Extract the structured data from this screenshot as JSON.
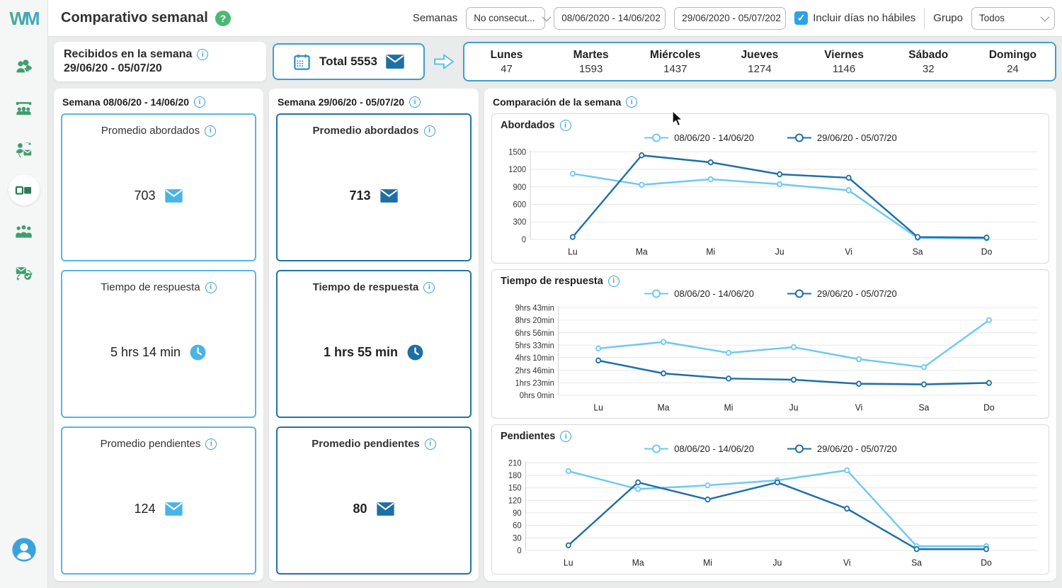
{
  "app": {
    "logo_text": "WM"
  },
  "sidebar": {
    "items": [
      {
        "icon": "users-tag-icon"
      },
      {
        "icon": "presentation-audience-icon"
      },
      {
        "icon": "person-mail-exchange-icon"
      },
      {
        "icon": "compare-squares-icon",
        "active": true
      },
      {
        "icon": "people-group-icon"
      },
      {
        "icon": "mail-check-sync-icon"
      }
    ],
    "profile_icon": "user-profile-icon"
  },
  "header": {
    "title": "Comparativo semanal",
    "semanas_label": "Semanas",
    "weeks_select_value": "No consecut...",
    "week1_input_value": "08/06/2020 - 14/06/202",
    "week2_input_value": "29/06/2020 - 05/07/202",
    "include_days_label": "Incluir días no hábiles",
    "include_days_checked": true,
    "grupo_label": "Grupo",
    "grupo_select_value": "Todos"
  },
  "received": {
    "title": "Recibidos en la semana",
    "date_range": "29/06/20 - 05/07/20",
    "total_label": "Total",
    "total_value": "5553",
    "days": [
      {
        "label": "Lunes",
        "value": "47"
      },
      {
        "label": "Martes",
        "value": "1593"
      },
      {
        "label": "Miércoles",
        "value": "1437"
      },
      {
        "label": "Jueves",
        "value": "1274"
      },
      {
        "label": "Viernes",
        "value": "1146"
      },
      {
        "label": "Sábado",
        "value": "32"
      },
      {
        "label": "Domingo",
        "value": "24"
      }
    ]
  },
  "week1": {
    "header": "Semana 08/06/20 - 14/06/20",
    "cards": [
      {
        "title": "Promedio abordados",
        "value": "703",
        "icon": "mail-icon"
      },
      {
        "title": "Tiempo de respuesta",
        "value": "5 hrs 14 min",
        "icon": "clock-icon"
      },
      {
        "title": "Promedio pendientes",
        "value": "124",
        "icon": "mail-icon"
      }
    ]
  },
  "week2": {
    "header": "Semana 29/06/20 - 05/07/20",
    "cards": [
      {
        "title": "Promedio abordados",
        "value": "713",
        "icon": "mail-icon"
      },
      {
        "title": "Tiempo de respuesta",
        "value": "1 hrs 55 min",
        "icon": "clock-icon"
      },
      {
        "title": "Promedio pendientes",
        "value": "80",
        "icon": "mail-icon"
      }
    ]
  },
  "comparison": {
    "header": "Comparación de la semana"
  },
  "colors": {
    "series_light": "#6ec9f0",
    "series_dark": "#1d6fa5",
    "accent_border_blue": "#3d9ed3",
    "info_blue": "#3aa0d8",
    "help_green": "#4cb873",
    "sidebar_green": "#3f9e6e",
    "checkbox_blue": "#2ba3e8"
  },
  "chart_data": [
    {
      "type": "line",
      "title": "Abordados",
      "categories": [
        "Lu",
        "Ma",
        "Mi",
        "Ju",
        "Vi",
        "Sa",
        "Do"
      ],
      "ylim": [
        0,
        1500
      ],
      "yticks": [
        0,
        300,
        600,
        900,
        1200,
        1500
      ],
      "ytick_labels": [
        "0",
        "300",
        "600",
        "900",
        "1200",
        "1500"
      ],
      "grid": true,
      "legend_position": "top",
      "series": [
        {
          "name": "08/06/20 - 14/06/20",
          "color": "#6ec9f0",
          "values": [
            1125,
            935,
            1030,
            945,
            840,
            25,
            15
          ]
        },
        {
          "name": "29/06/20 - 05/07/20",
          "color": "#1d6fa5",
          "values": [
            40,
            1440,
            1320,
            1115,
            1055,
            40,
            30
          ]
        }
      ]
    },
    {
      "type": "line",
      "title": "Tiempo de respuesta",
      "categories": [
        "Lu",
        "Ma",
        "Mi",
        "Ju",
        "Vi",
        "Sa",
        "Do"
      ],
      "ylim": [
        0,
        583
      ],
      "yticks": [
        0,
        83,
        166,
        250,
        333,
        416,
        500,
        583
      ],
      "ytick_labels": [
        "0hrs 0min",
        "1hrs 23min",
        "2hrs 46min",
        "4hrs 10min",
        "5hrs 33min",
        "6hrs 56min",
        "8hrs 20min",
        "9hrs 43min"
      ],
      "grid": true,
      "legend_position": "top",
      "y_unit": "minutes",
      "series": [
        {
          "name": "08/06/20 - 14/06/20",
          "color": "#6ec9f0",
          "values": [
            311,
            355,
            282,
            320,
            240,
            187,
            500
          ]
        },
        {
          "name": "29/06/20 - 05/07/20",
          "color": "#1d6fa5",
          "values": [
            231,
            145,
            111,
            103,
            76,
            72,
            82
          ]
        }
      ]
    },
    {
      "type": "line",
      "title": "Pendientes",
      "categories": [
        "Lu",
        "Ma",
        "Mi",
        "Ju",
        "Vi",
        "Sa",
        "Do"
      ],
      "ylim": [
        0,
        210
      ],
      "yticks": [
        0,
        30,
        60,
        90,
        120,
        150,
        180,
        210
      ],
      "ytick_labels": [
        "0",
        "30",
        "60",
        "90",
        "120",
        "150",
        "180",
        "210"
      ],
      "grid": true,
      "legend_position": "top",
      "series": [
        {
          "name": "08/06/20 - 14/06/20",
          "color": "#6ec9f0",
          "values": [
            190,
            147,
            156,
            168,
            192,
            10,
            10
          ]
        },
        {
          "name": "29/06/20 - 05/07/20",
          "color": "#1d6fa5",
          "values": [
            12,
            163,
            122,
            163,
            100,
            3,
            3
          ]
        }
      ]
    }
  ]
}
